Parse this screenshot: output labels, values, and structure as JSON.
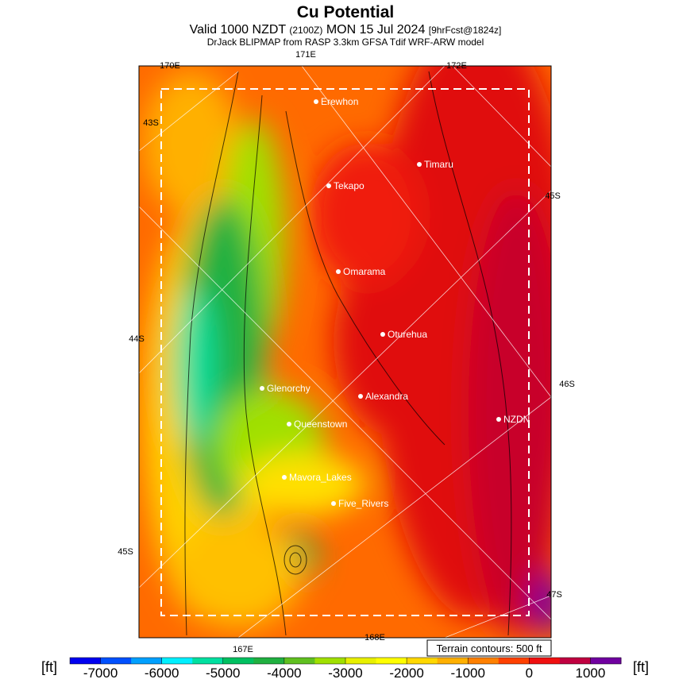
{
  "header": {
    "title": "Cu Potential",
    "valid": "Valid 1000 NZDT",
    "utc": "(2100Z)",
    "date": "MON 15 Jul 2024",
    "forecast": "[9hrFcst@1824z]",
    "source": "DrJack BLIPMAP from RASP 3.3km GFSA Tdif WRF-ARW model"
  },
  "map": {
    "grid_labels": [
      "170E",
      "171E",
      "172E",
      "43S",
      "44S",
      "45S",
      "45S",
      "46S",
      "47S",
      "167E",
      "168E"
    ],
    "places": [
      "Erewhon",
      "Timaru",
      "Tekapo",
      "Omarama",
      "Oturehua",
      "Alexandra",
      "Glenorchy",
      "Queenstown",
      "Mavora_Lakes",
      "Five_Rivers",
      "NZDN"
    ],
    "note": "Terrain contours: 500 ft"
  },
  "colorbar": {
    "unit": "[ft]",
    "range": [
      -7500,
      1500
    ],
    "ticks": [
      -7000,
      -6000,
      -5000,
      -4000,
      -3000,
      -2000,
      -1000,
      0,
      1000
    ],
    "colors": [
      "#0000f0",
      "#0050ff",
      "#00a0ff",
      "#00f0ff",
      "#00e0a0",
      "#00c060",
      "#20b040",
      "#60c020",
      "#a0e000",
      "#e8f000",
      "#ffff00",
      "#ffd800",
      "#ffb000",
      "#ff8000",
      "#ff4000",
      "#f01010",
      "#c00040",
      "#7000a0"
    ]
  }
}
